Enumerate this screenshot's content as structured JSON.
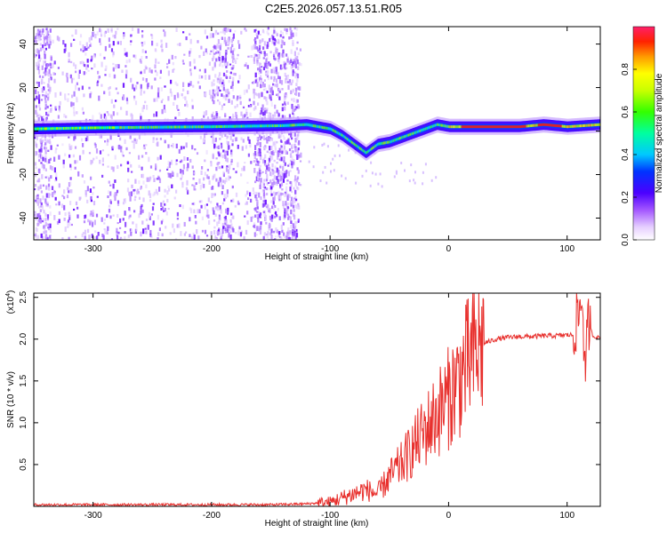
{
  "title": "C2E5.2026.057.13.51.R05",
  "chart_data": [
    {
      "type": "heatmap",
      "xlabel": "Height of straight line (km)",
      "ylabel": "Frequency (Hz)",
      "xlim": [
        -350,
        128
      ],
      "ylim": [
        -50,
        48
      ],
      "x_ticks": [
        -300,
        -200,
        -100,
        0,
        100
      ],
      "y_ticks": [
        -40,
        -20,
        0,
        20,
        40
      ],
      "colorbar": {
        "label": "Normalized spectral amplitude",
        "range": [
          0,
          1
        ],
        "ticks": [
          0.0,
          0.2,
          0.4,
          0.6,
          0.8
        ]
      },
      "ridge": {
        "description_points_x": [
          -350,
          -300,
          -200,
          -140,
          -120,
          -100,
          -90,
          -80,
          -70,
          -60,
          -50,
          -40,
          -30,
          -20,
          -10,
          0,
          20,
          40,
          60,
          80,
          100,
          128
        ],
        "description_points_y": [
          1,
          1.5,
          2,
          2.5,
          3,
          1,
          -2,
          -6,
          -10,
          -6,
          -5,
          -3,
          -1,
          1,
          3,
          2,
          2,
          2,
          2,
          3,
          2,
          3
        ]
      },
      "noise_region_x": [
        -350,
        -125
      ],
      "grid": false
    },
    {
      "type": "line",
      "xlabel": "Height of straight line (km)",
      "ylabel": "SNR (10 * v/v)",
      "y_multiplier": "(x10",
      "y_multiplier_exp": "4",
      "y_multiplier_close": ")",
      "xlim": [
        -350,
        128
      ],
      "ylim": [
        0,
        2.55
      ],
      "x_ticks": [
        -300,
        -200,
        -100,
        0,
        100
      ],
      "y_ticks": [
        0.5,
        1.0,
        1.5,
        2.0,
        2.5
      ],
      "series": [
        {
          "color": "#e8312e",
          "x": [
            -350,
            -300,
            -250,
            -200,
            -150,
            -120,
            -100,
            -90,
            -80,
            -70,
            -60,
            -50,
            -40,
            -30,
            -20,
            -10,
            0,
            10,
            20,
            30,
            40,
            50,
            60,
            70,
            80,
            90,
            100,
            105,
            110,
            113,
            115,
            118,
            122,
            128
          ],
          "y": [
            0.02,
            0.02,
            0.02,
            0.02,
            0.02,
            0.03,
            0.05,
            0.1,
            0.15,
            0.2,
            0.15,
            0.35,
            0.5,
            0.7,
            0.9,
            1.1,
            1.3,
            1.55,
            1.8,
            1.95,
            2.0,
            2.02,
            2.03,
            2.03,
            2.04,
            2.04,
            2.05,
            2.05,
            2.3,
            2.5,
            1.6,
            2.2,
            2.03,
            2.02
          ]
        }
      ],
      "grid": false
    }
  ]
}
